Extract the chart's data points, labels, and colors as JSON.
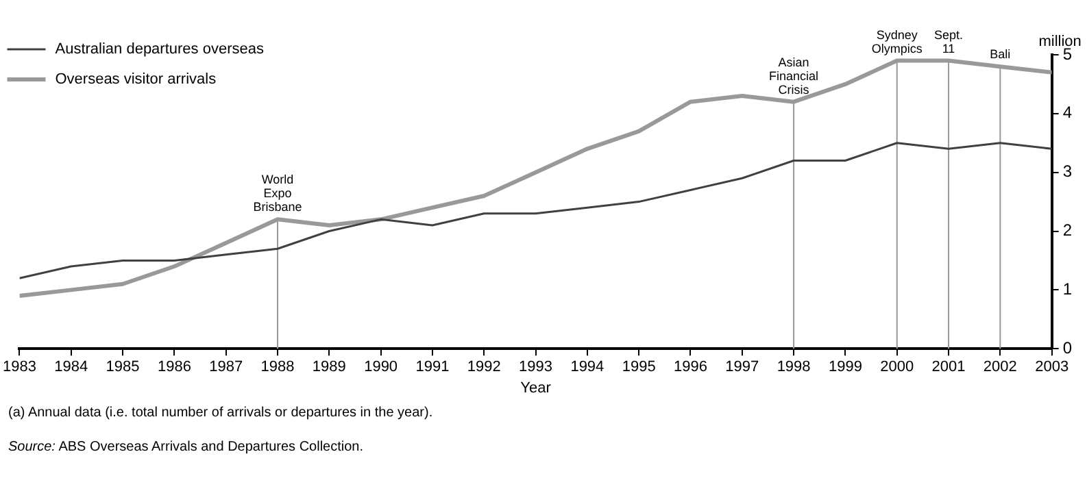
{
  "chart_data": {
    "type": "line",
    "xlabel": "Year",
    "ylabel": "million",
    "x": [
      1983,
      1984,
      1985,
      1986,
      1987,
      1988,
      1989,
      1990,
      1991,
      1992,
      1993,
      1994,
      1995,
      1996,
      1997,
      1998,
      1999,
      2000,
      2001,
      2002,
      2003
    ],
    "series": [
      {
        "name": "Australian departures overseas",
        "color": "#404040",
        "values": [
          1.2,
          1.4,
          1.5,
          1.5,
          1.6,
          1.7,
          2.0,
          2.2,
          2.1,
          2.3,
          2.3,
          2.4,
          2.5,
          2.7,
          2.9,
          3.2,
          3.2,
          3.5,
          3.4,
          3.5,
          3.4
        ]
      },
      {
        "name": "Overseas visitor arrivals",
        "color": "#999999",
        "values": [
          0.9,
          1.0,
          1.1,
          1.4,
          1.8,
          2.2,
          2.1,
          2.2,
          2.4,
          2.6,
          3.0,
          3.4,
          3.7,
          4.2,
          4.3,
          4.2,
          4.5,
          4.9,
          4.9,
          4.8,
          4.7
        ]
      }
    ],
    "xlim": [
      1983,
      2003
    ],
    "xticks": [
      1983,
      1984,
      1985,
      1986,
      1987,
      1988,
      1989,
      1990,
      1991,
      1992,
      1993,
      1994,
      1995,
      1996,
      1997,
      1998,
      1999,
      2000,
      2001,
      2002,
      2003
    ],
    "ylim": [
      0,
      5
    ],
    "yticks": [
      0,
      1,
      2,
      3,
      4,
      5
    ],
    "ref_lines": [
      {
        "axis": "x",
        "value": 1988,
        "label": "World Expo Brisbane",
        "color": "#999999"
      },
      {
        "axis": "x",
        "value": 1998,
        "label": "Asian Financial Crisis",
        "color": "#999999"
      },
      {
        "axis": "x",
        "value": 2000,
        "label": "Sydney Olympics",
        "color": "#999999"
      },
      {
        "axis": "x",
        "value": 2001,
        "label": "Sept. 11",
        "color": "#999999"
      },
      {
        "axis": "x",
        "value": 2002,
        "label": "Bali",
        "color": "#999999"
      }
    ],
    "annotations": [
      "(a) Annual data (i.e. total number of arrivals or departures in the year).",
      "Source: ABS Overseas Arrivals and Departures Collection."
    ],
    "grid": false,
    "legend": "top left",
    "marker": "none",
    "line_style": "solid"
  }
}
